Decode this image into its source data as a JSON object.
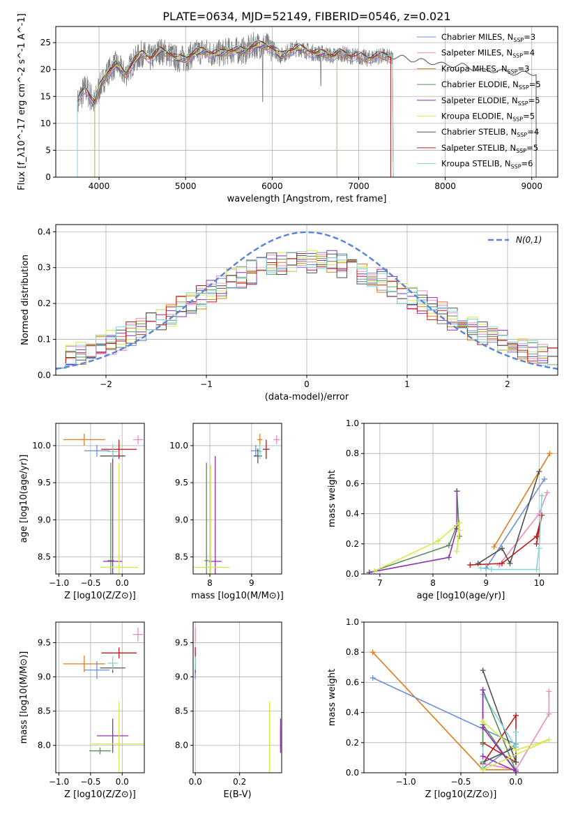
{
  "figure_title": "PLATE=0634, MJD=52149, FIBERID=0546, z=0.021",
  "colors": {
    "Chabrier MILES": "#6b8fd6",
    "Salpeter MILES": "#e78bc0",
    "Kroupa MILES": "#b8862c",
    "Chabrier ELODIE": "#5b8a5b",
    "Salpeter ELODIE": "#8e2fb0",
    "Kroupa ELODIE": "#d6e84a",
    "Chabrier STELIB": "#505050",
    "Salpeter STELIB": "#c01818",
    "Kroupa STELIB": "#7fd6d6",
    "orange": "#e07b1c",
    "data": "#808080",
    "normal": "#5b86d6"
  },
  "chart_data": [
    {
      "type": "line",
      "name": "spectrum",
      "xlabel": "wavelength [Angstrom, rest frame]",
      "ylabel": "Flux [f_λ10^-17 erg cm^-2 s^-1 A^-1]",
      "xlim": [
        3500,
        9300
      ],
      "ylim": [
        0,
        28
      ],
      "xticks": [
        4000,
        5000,
        6000,
        7000,
        8000,
        9000
      ],
      "yticks": [
        0,
        5,
        10,
        15,
        20,
        25
      ],
      "legend_position": "top-right",
      "legend": [
        {
          "label": "Chabrier MILES, N",
          "sub": "SSP",
          "suffix": "=3",
          "color": "#6b8fd6"
        },
        {
          "label": "Salpeter MILES, N",
          "sub": "SSP",
          "suffix": "=4",
          "color": "#e78bc0"
        },
        {
          "label": "Kroupa MILES, N",
          "sub": "SSP",
          "suffix": "=3",
          "color": "#b8862c"
        },
        {
          "label": "Chabrier ELODIE, N",
          "sub": "SSP",
          "suffix": "=5",
          "color": "#5b8a5b"
        },
        {
          "label": "Salpeter ELODIE, N",
          "sub": "SSP",
          "suffix": "=5",
          "color": "#8e2fb0"
        },
        {
          "label": "Kroupa ELODIE, N",
          "sub": "SSP",
          "suffix": "=5",
          "color": "#d6e84a"
        },
        {
          "label": "Chabrier STELIB, N",
          "sub": "SSP",
          "suffix": "=4",
          "color": "#505050"
        },
        {
          "label": "Salpeter STELIB, N",
          "sub": "SSP",
          "suffix": "=5",
          "color": "#c01818"
        },
        {
          "label": "Kroupa STELIB, N",
          "sub": "SSP",
          "suffix": "=6",
          "color": "#7fd6d6"
        }
      ],
      "model_ranges": [
        {
          "color": "#6b8fd6",
          "x": [
            3750,
            7400
          ]
        },
        {
          "color": "#e78bc0",
          "x": [
            3750,
            7400
          ]
        },
        {
          "color": "#b8862c",
          "x": [
            3950,
            7400
          ]
        },
        {
          "color": "#5b8a5b",
          "x": [
            3950,
            6750
          ]
        },
        {
          "color": "#8e2fb0",
          "x": [
            3950,
            6750
          ]
        },
        {
          "color": "#d6e84a",
          "x": [
            3950,
            6750
          ]
        },
        {
          "color": "#505050",
          "x": [
            3750,
            9050
          ]
        },
        {
          "color": "#c01818",
          "x": [
            3750,
            7370
          ]
        },
        {
          "color": "#7fd6d6",
          "x": [
            3750,
            7400
          ]
        }
      ],
      "continuum": {
        "x": [
          3750,
          3800,
          3850,
          3900,
          3950,
          4000,
          4100,
          4200,
          4300,
          4400,
          4500,
          4600,
          4700,
          4800,
          4900,
          5000,
          5100,
          5200,
          5300,
          5400,
          5500,
          5600,
          5700,
          5800,
          5900,
          6000,
          6100,
          6200,
          6300,
          6400,
          6500,
          6600,
          6700,
          6800,
          6900,
          7000,
          7100,
          7200,
          7300,
          7400,
          7500,
          7600,
          7700,
          7800,
          7900,
          8000,
          8200,
          8400,
          8600,
          8800,
          9000
        ],
        "y": [
          13.5,
          15.5,
          16.5,
          15.0,
          13.5,
          16.5,
          19.5,
          21.0,
          19.0,
          21.5,
          23.0,
          22.0,
          23.5,
          23.0,
          22.0,
          22.0,
          23.0,
          23.5,
          23.0,
          23.0,
          23.5,
          23.5,
          23.5,
          24.5,
          24.5,
          24.0,
          22.5,
          23.5,
          24.0,
          23.5,
          23.0,
          23.0,
          22.5,
          23.0,
          22.5,
          22.5,
          22.0,
          22.5,
          22.5,
          22.0,
          22.0,
          21.5,
          21.5,
          21.0,
          21.0,
          20.5,
          20.5,
          19.5,
          19.5,
          19.0,
          19.0
        ]
      }
    },
    {
      "type": "bar",
      "name": "residual histogram",
      "xlabel": "(data-model)/error",
      "ylabel": "Normed distribution",
      "xlim": [
        -2.5,
        2.5
      ],
      "ylim": [
        0,
        0.42
      ],
      "xticks": [
        -2,
        -1,
        0,
        1,
        2
      ],
      "yticks": [
        0.0,
        0.1,
        0.2,
        0.3,
        0.4
      ],
      "legend_position": "top-right",
      "legend_label": "N(0,1)",
      "bin_width": 0.1
    },
    {
      "type": "scatter",
      "name": "age vs Z",
      "xlabel": "Z [log10(Z/Z⊙)]",
      "ylabel": "age [log10(age/yr)]",
      "xlim": [
        -1.05,
        0.35
      ],
      "ylim": [
        8.27,
        10.3
      ],
      "xticks": [
        -1.0,
        -0.5,
        0.0
      ],
      "yticks": [
        8.5,
        9.0,
        9.5,
        10.0
      ],
      "points": [
        {
          "color": "#e07b1c",
          "x": -0.6,
          "y": 10.08,
          "xerr": 0.33,
          "yerr": 0.08
        },
        {
          "color": "#6b8fd6",
          "x": -0.4,
          "y": 9.93,
          "xerr": 0.2,
          "yerr": 0.08
        },
        {
          "color": "#e78bc0",
          "x": 0.25,
          "y": 10.08,
          "xerr": 0.08,
          "yerr": 0.06
        },
        {
          "color": "#c01818",
          "x": -0.05,
          "y": 9.95,
          "xerr": 0.28,
          "yerr": 0.13
        },
        {
          "color": "#505050",
          "x": -0.15,
          "y": 9.86,
          "xerr": 0.2,
          "yerr": 0.1
        },
        {
          "color": "#7fd6d6",
          "x": -0.15,
          "y": 9.92,
          "xerr": 0.08,
          "yerr": 0.1
        },
        {
          "color": "#5b8a5b",
          "x": -0.18,
          "y": 8.45,
          "xerr": 0.05,
          "yerr": 1.32
        },
        {
          "color": "#8e2fb0",
          "x": -0.15,
          "y": 8.44,
          "xerr": 0.15,
          "yerr": 1.35
        },
        {
          "color": "#d6e84a",
          "x": -0.05,
          "y": 8.36,
          "xerr": 0.3,
          "yerr": 1.4
        }
      ]
    },
    {
      "type": "scatter",
      "name": "age vs mass",
      "xlabel": "mass [log10(M/M⊙)]",
      "ylabel": "",
      "xlim": [
        7.6,
        9.72
      ],
      "ylim": [
        8.27,
        10.3
      ],
      "xticks": [
        8,
        9
      ],
      "yticks": [
        8.5,
        9.0,
        9.5,
        10.0
      ],
      "points": [
        {
          "color": "#e07b1c",
          "x": 9.2,
          "y": 10.08,
          "xerr": 0.06,
          "yerr": 0.08
        },
        {
          "color": "#6b8fd6",
          "x": 9.1,
          "y": 9.93,
          "xerr": 0.12,
          "yerr": 0.08
        },
        {
          "color": "#e78bc0",
          "x": 9.6,
          "y": 10.08,
          "xerr": 0.08,
          "yerr": 0.06
        },
        {
          "color": "#c01818",
          "x": 9.35,
          "y": 9.95,
          "xerr": 0.08,
          "yerr": 0.13
        },
        {
          "color": "#505050",
          "x": 9.15,
          "y": 9.86,
          "xerr": 0.1,
          "yerr": 0.1
        },
        {
          "color": "#7fd6d6",
          "x": 9.2,
          "y": 9.92,
          "xerr": 0.05,
          "yerr": 0.1
        },
        {
          "color": "#5b8a5b",
          "x": 7.92,
          "y": 8.45,
          "xerr": 0.05,
          "yerr": 1.32
        },
        {
          "color": "#8e2fb0",
          "x": 8.13,
          "y": 8.44,
          "xerr": 0.15,
          "yerr": 1.42
        },
        {
          "color": "#d6e84a",
          "x": 8.02,
          "y": 8.36,
          "xerr": 0.45,
          "yerr": 1.38
        }
      ]
    },
    {
      "type": "line",
      "name": "mass weight vs age",
      "xlabel": "age [log10(age/yr)]",
      "ylabel": "mass weight",
      "xlim": [
        6.7,
        10.35
      ],
      "ylim": [
        0,
        1
      ],
      "xticks": [
        7,
        8,
        9,
        10
      ],
      "yticks": [
        0.0,
        0.2,
        0.4,
        0.6,
        0.8,
        1.0
      ],
      "series": [
        {
          "color": "#e07b1c",
          "x": [
            9.15,
            10.2
          ],
          "y": [
            0.18,
            0.8
          ]
        },
        {
          "color": "#6b8fd6",
          "x": [
            9.0,
            10.1
          ],
          "y": [
            0.04,
            0.63
          ]
        },
        {
          "color": "#e78bc0",
          "x": [
            9.25,
            10.0,
            10.15
          ],
          "y": [
            0.06,
            0.4,
            0.54
          ]
        },
        {
          "color": "#c01818",
          "x": [
            8.7,
            9.3,
            9.95,
            10.05,
            9.95
          ],
          "y": [
            0.06,
            0.07,
            0.25,
            0.39,
            0.2
          ]
        },
        {
          "color": "#505050",
          "x": [
            8.85,
            9.3,
            9.45,
            10.0
          ],
          "y": [
            0.07,
            0.17,
            0.07,
            0.68
          ]
        },
        {
          "color": "#7fd6d6",
          "x": [
            8.9,
            9.1,
            9.95,
            10.0,
            10.05
          ],
          "y": [
            0.04,
            0.03,
            0.03,
            0.17,
            0.52
          ]
        },
        {
          "color": "#5b8a5b",
          "x": [
            6.8,
            8.3,
            8.45,
            8.45,
            8.5
          ],
          "y": [
            0.01,
            0.19,
            0.32,
            0.55,
            0.25
          ]
        },
        {
          "color": "#8e2fb0",
          "x": [
            6.8,
            8.3,
            8.45,
            8.45
          ],
          "y": [
            0.01,
            0.11,
            0.3,
            0.55
          ]
        },
        {
          "color": "#d6e84a",
          "x": [
            6.9,
            8.1,
            8.5,
            8.45,
            8.5
          ],
          "y": [
            0.02,
            0.22,
            0.34,
            0.15,
            0.29
          ]
        }
      ]
    },
    {
      "type": "scatter",
      "name": "mass vs Z",
      "xlabel": "Z [log10(Z/Z⊙)]",
      "ylabel": "mass [log10(M/M⊙)]",
      "xlim": [
        -1.05,
        0.35
      ],
      "ylim": [
        7.6,
        9.8
      ],
      "xticks": [
        -1.0,
        -0.5,
        0.0
      ],
      "yticks": [
        8.0,
        8.5,
        9.0,
        9.5
      ],
      "points": [
        {
          "color": "#e07b1c",
          "x": -0.6,
          "y": 9.19,
          "xerr": 0.33,
          "yerr": 0.12
        },
        {
          "color": "#6b8fd6",
          "x": -0.4,
          "y": 9.1,
          "xerr": 0.2,
          "yerr": 0.13
        },
        {
          "color": "#e78bc0",
          "x": 0.25,
          "y": 9.62,
          "xerr": 0.08,
          "yerr": 0.1
        },
        {
          "color": "#c01818",
          "x": -0.05,
          "y": 9.35,
          "xerr": 0.28,
          "yerr": 0.08
        },
        {
          "color": "#505050",
          "x": -0.15,
          "y": 9.13,
          "xerr": 0.2,
          "yerr": 0.07
        },
        {
          "color": "#7fd6d6",
          "x": -0.15,
          "y": 9.2,
          "xerr": 0.08,
          "yerr": 0.1
        },
        {
          "color": "#5b8a5b",
          "x": -0.35,
          "y": 7.92,
          "xerr": 0.17,
          "yerr": 0.05
        },
        {
          "color": "#8e2fb0",
          "x": -0.15,
          "y": 8.14,
          "xerr": 0.25,
          "yerr": 0.25
        },
        {
          "color": "#d6e84a",
          "x": -0.05,
          "y": 8.02,
          "xerr": 0.45,
          "yerr": 0.62
        }
      ]
    },
    {
      "type": "scatter",
      "name": "mass vs E(B-V)",
      "xlabel": "E(B-V)",
      "ylabel": "",
      "xlim": [
        -0.01,
        0.39
      ],
      "ylim": [
        7.6,
        9.8
      ],
      "xticks": [
        0.0,
        0.2
      ],
      "yticks": [
        8.0,
        8.5,
        9.0,
        9.5
      ],
      "points": [
        {
          "color": "#e07b1c",
          "x": 0.0,
          "y": 9.19,
          "xerr": 0.0,
          "yerr": 0.12
        },
        {
          "color": "#6b8fd6",
          "x": 0.0,
          "y": 9.1,
          "xerr": 0.0,
          "yerr": 0.13
        },
        {
          "color": "#e78bc0",
          "x": 0.0,
          "y": 9.62,
          "xerr": 0.0,
          "yerr": 0.1
        },
        {
          "color": "#c01818",
          "x": 0.0,
          "y": 9.35,
          "xerr": 0.0,
          "yerr": 0.08
        },
        {
          "color": "#505050",
          "x": 0.0,
          "y": 9.13,
          "xerr": 0.0,
          "yerr": 0.07
        },
        {
          "color": "#7fd6d6",
          "x": 0.0,
          "y": 9.2,
          "xerr": 0.0,
          "yerr": 0.1
        },
        {
          "color": "#5b8a5b",
          "x": 0.385,
          "y": 8.1,
          "xerr": 0.0,
          "yerr": 0.15
        },
        {
          "color": "#8e2fb0",
          "x": 0.385,
          "y": 8.14,
          "xerr": 0.0,
          "yerr": 0.25
        },
        {
          "color": "#d6e84a",
          "x": 0.335,
          "y": 8.02,
          "xerr": 0.0,
          "yerr": 0.62
        }
      ]
    },
    {
      "type": "line",
      "name": "mass weight vs Z",
      "xlabel": "Z [log10(Z/Z⊙)]",
      "ylabel": "mass weight",
      "xlim": [
        -1.38,
        0.38
      ],
      "ylim": [
        0,
        1
      ],
      "xticks": [
        -1.0,
        -0.5,
        0.0
      ],
      "yticks": [
        0.0,
        0.2,
        0.4,
        0.6,
        0.8,
        1.0
      ],
      "series": [
        {
          "color": "#e07b1c",
          "x": [
            -1.3,
            -0.3,
            0.0
          ],
          "y": [
            0.8,
            0.02,
            0.02
          ]
        },
        {
          "color": "#6b8fd6",
          "x": [
            -1.3,
            0.0,
            -0.3
          ],
          "y": [
            0.63,
            0.19,
            0.03
          ]
        },
        {
          "color": "#e78bc0",
          "x": [
            -0.3,
            0.0,
            0.3,
            0.3
          ],
          "y": [
            0.06,
            0.02,
            0.39,
            0.54
          ]
        },
        {
          "color": "#c01818",
          "x": [
            -0.3,
            0.0,
            0.0,
            -0.3
          ],
          "y": [
            0.2,
            0.07,
            0.38,
            0.06
          ]
        },
        {
          "color": "#505050",
          "x": [
            -0.3,
            0.0,
            0.0,
            -0.3
          ],
          "y": [
            0.68,
            0.07,
            0.17,
            0.07
          ]
        },
        {
          "color": "#7fd6d6",
          "x": [
            -0.3,
            -0.3,
            0.0,
            0.0
          ],
          "y": [
            0.03,
            0.52,
            0.17,
            0.27
          ]
        },
        {
          "color": "#5b8a5b",
          "x": [
            -0.3,
            0.0,
            -0.3,
            -0.3
          ],
          "y": [
            0.32,
            0.01,
            0.55,
            0.19
          ]
        },
        {
          "color": "#8e2fb0",
          "x": [
            -0.3,
            0.0,
            -0.3,
            -0.3
          ],
          "y": [
            0.11,
            0.01,
            0.3,
            0.55
          ]
        },
        {
          "color": "#d6e84a",
          "x": [
            -0.3,
            0.0,
            0.3,
            -0.3
          ],
          "y": [
            0.34,
            0.15,
            0.22,
            0.02
          ]
        }
      ]
    }
  ]
}
